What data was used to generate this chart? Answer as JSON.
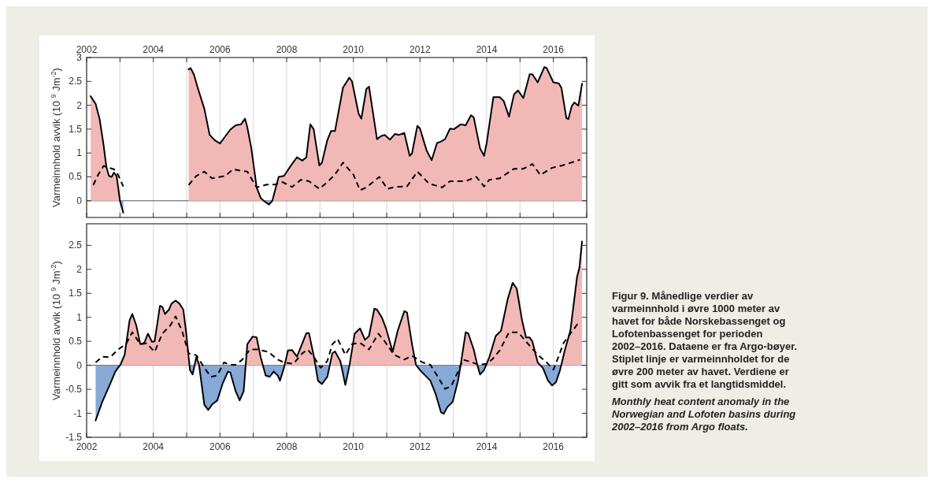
{
  "chart_data": [
    {
      "type": "area",
      "ylabel": "Varmeinnhold avvik (10 $^{9}$ Jm$^{-2}$)",
      "tick_labels": "y",
      "xlim": [
        2002,
        2017
      ],
      "xticks": [
        2002,
        {
          "value": 2003,
          "label": null
        },
        2004,
        {
          "value": 2005,
          "label": null
        },
        2006,
        {
          "value": 2007,
          "label": null
        },
        2008,
        {
          "value": 2009,
          "label": null
        },
        2010,
        {
          "value": 2011,
          "label": null
        },
        2012,
        {
          "value": 2013,
          "label": null
        },
        2014,
        {
          "value": 2015,
          "label": null
        },
        2016,
        {
          "value": 2017,
          "label": null
        }
      ],
      "x2lim": [
        2002,
        2017
      ],
      "x2ticks": [
        2002,
        {
          "value": 2003,
          "label": null
        },
        2004,
        {
          "value": 2005,
          "label": null
        },
        2006,
        {
          "value": 2007,
          "label": null
        },
        2008,
        {
          "value": 2009,
          "label": null
        },
        2010,
        {
          "value": 2011,
          "label": null
        },
        2012,
        {
          "value": 2013,
          "label": null
        },
        2014,
        {
          "value": 2015,
          "label": null
        },
        2016,
        {
          "value": 2017,
          "label": null
        }
      ],
      "ylim": [
        -0.35,
        3
      ],
      "yticks": [
        0,
        0.5,
        1,
        1.5,
        2,
        2.5,
        3
      ],
      "grid": "x",
      "series": [
        {
          "color": "#000000",
          "colors": [
            "#f2b8b6",
            "#f2b8b6",
            "#f2b8b6",
            "#f2b8b6",
            "#f2b8b6",
            "#f2b8b6",
            "#f2b8b6",
            "#f2b8b6",
            "#f2b8b6",
            "#f2b8b6",
            "#86a9d6",
            null,
            "#f2b8b6",
            "#f2b8b6",
            "#f2b8b6",
            "#f2b8b6",
            "#f2b8b6",
            "#f2b8b6",
            "#f2b8b6",
            "#f2b8b6",
            "#f2b8b6",
            "#f2b8b6",
            "#f2b8b6",
            "#f2b8b6",
            "#f2b8b6",
            "#f2b8b6",
            "#f2b8b6",
            "#f2b8b6",
            "#f2b8b6",
            "#86a9d6",
            "#86a9d6",
            "#f2b8b6",
            "#f2b8b6",
            "#f2b8b6",
            "#f2b8b6",
            "#f2b8b6",
            "#f2b8b6",
            "#f2b8b6",
            "#f2b8b6",
            "#f2b8b6",
            "#f2b8b6",
            "#f2b8b6",
            "#f2b8b6",
            "#f2b8b6",
            "#f2b8b6",
            "#f2b8b6",
            "#f2b8b6",
            "#f2b8b6",
            "#f2b8b6",
            "#f2b8b6",
            "#f2b8b6",
            "#f2b8b6",
            "#f2b8b6",
            "#f2b8b6",
            "#f2b8b6",
            "#f2b8b6",
            "#f2b8b6",
            "#f2b8b6",
            "#f2b8b6",
            "#f2b8b6",
            "#f2b8b6",
            "#f2b8b6",
            "#f2b8b6",
            "#f2b8b6",
            "#f2b8b6",
            "#f2b8b6",
            "#f2b8b6",
            "#f2b8b6",
            "#f2b8b6",
            "#f2b8b6",
            "#f2b8b6",
            "#f2b8b6",
            "#f2b8b6",
            "#f2b8b6",
            "#f2b8b6",
            "#f2b8b6",
            "#f2b8b6",
            "#f2b8b6",
            "#f2b8b6",
            "#f2b8b6",
            "#f2b8b6",
            "#f2b8b6",
            "#f2b8b6",
            "#f2b8b6",
            "#f2b8b6",
            "#f2b8b6",
            "#f2b8b6",
            "#f2b8b6",
            "#f2b8b6",
            "#f2b8b6",
            "#f2b8b6",
            "#f2b8b6",
            "#f2b8b6",
            "#f2b8b6",
            "#f2b8b6",
            "#f2b8b6",
            "#f2b8b6",
            "#f2b8b6"
          ],
          "x": [
            2002.12,
            2002.27,
            2002.39,
            2002.51,
            2002.59,
            2002.67,
            2002.75,
            2002.82,
            2002.9,
            2003.0,
            2003.1,
            2004.0,
            2005.06,
            2005.12,
            2005.22,
            2005.33,
            2005.53,
            2005.69,
            2005.84,
            2006.0,
            2006.16,
            2006.31,
            2006.47,
            2006.63,
            2006.75,
            2006.82,
            2006.94,
            2007.1,
            2007.22,
            2007.33,
            2007.47,
            2007.57,
            2007.76,
            2007.92,
            2008.16,
            2008.31,
            2008.47,
            2008.59,
            2008.71,
            2008.81,
            2008.98,
            2009.06,
            2009.22,
            2009.33,
            2009.45,
            2009.69,
            2009.88,
            2009.96,
            2010.16,
            2010.24,
            2010.39,
            2010.47,
            2010.71,
            2010.82,
            2010.94,
            2011.1,
            2011.25,
            2011.37,
            2011.53,
            2011.69,
            2011.76,
            2011.92,
            2012.0,
            2012.2,
            2012.35,
            2012.51,
            2012.63,
            2012.75,
            2012.9,
            2013.02,
            2013.22,
            2013.37,
            2013.53,
            2013.61,
            2013.8,
            2013.92,
            2014.0,
            2014.2,
            2014.39,
            2014.51,
            2014.67,
            2014.82,
            2014.94,
            2015.1,
            2015.29,
            2015.37,
            2015.53,
            2015.73,
            2015.8,
            2016.0,
            2016.16,
            2016.24,
            2016.39,
            2016.45,
            2016.55,
            2016.63,
            2016.75,
            2016.86
          ],
          "values": [
            2.19,
            2.03,
            1.71,
            1.16,
            0.72,
            0.52,
            0.5,
            0.59,
            0.52,
            0,
            -0.25,
            null,
            2.75,
            2.78,
            2.64,
            2.37,
            1.93,
            1.38,
            1.27,
            1.2,
            1.35,
            1.49,
            1.58,
            1.6,
            1.72,
            1.54,
            1.1,
            0.28,
            0.06,
            -0.01,
            -0.08,
            0,
            0.5,
            0.52,
            0.77,
            0.91,
            0.84,
            0.91,
            1.6,
            1.5,
            0.74,
            0.8,
            1.27,
            1.46,
            1.46,
            2.37,
            2.58,
            2.5,
            1.82,
            1.72,
            2.34,
            2.39,
            1.29,
            1.35,
            1.38,
            1.28,
            1.4,
            1.38,
            1.42,
            0.94,
            0.99,
            1.57,
            1.51,
            1.05,
            0.85,
            1.21,
            1.24,
            1.29,
            1.51,
            1.5,
            1.6,
            1.58,
            1.79,
            1.75,
            1.1,
            0.94,
            1.21,
            2.17,
            2.17,
            2.09,
            1.76,
            2.23,
            2.31,
            2.15,
            2.65,
            2.65,
            2.48,
            2.8,
            2.78,
            2.48,
            2.46,
            2.37,
            1.73,
            1.71,
            1.98,
            2.06,
            1.99,
            2.45
          ]
        },
        {
          "type": "line",
          "color": "#000000",
          "line_style": "dashed",
          "x": [
            2002.2,
            2002.35,
            2002.51,
            2002.67,
            2002.82,
            2002.94,
            2003.1,
            2004.0,
            2005.06,
            2005.29,
            2005.53,
            2005.76,
            2006.0,
            2006.16,
            2006.39,
            2006.63,
            2006.82,
            2007.1,
            2007.41,
            2007.65,
            2007.88,
            2008.16,
            2008.43,
            2008.67,
            2008.98,
            2009.22,
            2009.45,
            2009.69,
            2010.0,
            2010.2,
            2010.39,
            2010.78,
            2011.02,
            2011.25,
            2011.61,
            2011.92,
            2012.27,
            2012.67,
            2012.9,
            2013.37,
            2013.69,
            2013.92,
            2014.08,
            2014.39,
            2014.82,
            2015.1,
            2015.37,
            2015.61,
            2015.96,
            2016.27,
            2016.71,
            2016.8
          ],
          "values": [
            0.33,
            0.55,
            0.73,
            0.69,
            0.66,
            0.55,
            0.3,
            null,
            0.33,
            0.52,
            0.61,
            0.47,
            0.5,
            0.52,
            0.66,
            0.63,
            0.61,
            0.28,
            0.34,
            0.34,
            0.39,
            0.29,
            0.44,
            0.41,
            0.25,
            0.39,
            0.55,
            0.8,
            0.55,
            0.22,
            0.28,
            0.5,
            0.25,
            0.29,
            0.3,
            0.61,
            0.36,
            0.28,
            0.41,
            0.41,
            0.5,
            0.3,
            0.44,
            0.47,
            0.67,
            0.67,
            0.77,
            0.54,
            0.69,
            0.74,
            0.84,
            0.86
          ]
        }
      ]
    },
    {
      "type": "area",
      "ylabel": "Varmeinnhold avvik (10 $^{9}$ Jm$^{-2}$)",
      "xlim": [
        2002,
        2017
      ],
      "xticks": [
        2002,
        {
          "value": 2003,
          "label": null
        },
        2004,
        {
          "value": 2005,
          "label": null
        },
        2006,
        {
          "value": 2007,
          "label": null
        },
        2008,
        {
          "value": 2009,
          "label": null
        },
        2010,
        {
          "value": 2011,
          "label": null
        },
        2012,
        {
          "value": 2013,
          "label": null
        },
        2014,
        {
          "value": 2015,
          "label": null
        },
        2016,
        {
          "value": 2017,
          "label": null
        }
      ],
      "ylim": [
        -1.5,
        2.95
      ],
      "yticks": [
        -1.5,
        -1,
        -0.5,
        0,
        0.5,
        1,
        1.5,
        2,
        2.5
      ],
      "grid": "x",
      "annotations": [
        "Figur 9. Månedlige verdier av varmeinnhold i øvre 1000 meter av havet for både Norskebassenget og Lofotenbassenget for perioden 2002–2016. Dataene er fra Argo-bøyer. Stiplet linje er varmeinnholdet for de øvre 200 meter av havet. Verdiene er gitt som avvik fra et langtidsmiddel.",
        "Monthly heat content anomaly in the Norwegian and Lofoten basins during 2002–2016 from Argo floats."
      ],
      "series": [
        {
          "color": "#000000",
          "colors": [
            "#86a9d6",
            "#86a9d6",
            "#86a9d6",
            "#86a9d6",
            "#f2b8b6",
            "#f2b8b6",
            "#f2b8b6",
            "#f2b8b6",
            "#f2b8b6",
            "#f2b8b6",
            "#f2b8b6",
            "#f2b8b6",
            "#f2b8b6",
            "#f2b8b6",
            "#f2b8b6",
            "#f2b8b6",
            "#f2b8b6",
            "#f2b8b6",
            "#f2b8b6",
            "#f2b8b6",
            "#f2b8b6",
            "#f2b8b6",
            "#f2b8b6",
            "#86a9d6",
            "#86a9d6",
            "#f2b8b6",
            "#f2b8b6",
            "#86a9d6",
            "#86a9d6",
            "#86a9d6",
            "#86a9d6",
            "#86a9d6",
            "#86a9d6",
            "#86a9d6",
            "#86a9d6",
            "#86a9d6",
            "#86a9d6",
            "#f2b8b6",
            "#f2b8b6",
            "#f2b8b6",
            "#f2b8b6",
            "#86a9d6",
            "#86a9d6",
            "#86a9d6",
            "#86a9d6",
            "#86a9d6",
            "#86a9d6",
            "#f2b8b6",
            "#f2b8b6",
            "#f2b8b6",
            "#f2b8b6",
            "#f2b8b6",
            "#f2b8b6",
            "#f2b8b6",
            "#86a9d6",
            "#86a9d6",
            "#86a9d6",
            "#f2b8b6",
            "#f2b8b6",
            "#f2b8b6",
            "#86a9d6",
            "#86a9d6",
            "#f2b8b6",
            "#f2b8b6",
            "#f2b8b6",
            "#f2b8b6",
            "#f2b8b6",
            "#f2b8b6",
            "#f2b8b6",
            "#f2b8b6",
            "#f2b8b6",
            "#f2b8b6",
            "#f2b8b6",
            "#f2b8b6",
            "#f2b8b6",
            "#f2b8b6",
            "#86a9d6",
            "#86a9d6",
            "#86a9d6",
            "#86a9d6",
            "#86a9d6",
            "#86a9d6",
            "#86a9d6",
            "#86a9d6",
            "#86a9d6",
            "#f2b8b6",
            "#f2b8b6",
            "#f2b8b6",
            "#f2b8b6",
            "#86a9d6",
            "#86a9d6",
            "#86a9d6",
            "#f2b8b6",
            "#f2b8b6",
            "#f2b8b6",
            "#f2b8b6",
            "#f2b8b6",
            "#f2b8b6",
            "#f2b8b6",
            "#f2b8b6",
            "#f2b8b6",
            "#f2b8b6",
            "#f2b8b6",
            "#86a9d6",
            "#86a9d6",
            "#86a9d6",
            "#86a9d6",
            "#86a9d6",
            "#f2b8b6",
            "#f2b8b6",
            "#f2b8b6",
            "#f2b8b6",
            "#f2b8b6"
          ],
          "x": [
            2002.27,
            2002.47,
            2002.71,
            2002.86,
            2003.02,
            2003.14,
            2003.29,
            2003.37,
            2003.49,
            2003.61,
            2003.73,
            2003.84,
            2003.96,
            2004.04,
            2004.2,
            2004.27,
            2004.35,
            2004.47,
            2004.55,
            2004.67,
            2004.78,
            2004.9,
            2004.98,
            2005.1,
            2005.18,
            2005.29,
            2005.37,
            2005.53,
            2005.65,
            2005.76,
            2005.92,
            2006.08,
            2006.24,
            2006.31,
            2006.47,
            2006.59,
            2006.71,
            2006.82,
            2006.98,
            2007.1,
            2007.22,
            2007.37,
            2007.49,
            2007.61,
            2007.73,
            2007.8,
            2007.92,
            2008.04,
            2008.16,
            2008.31,
            2008.43,
            2008.59,
            2008.67,
            2008.82,
            2008.94,
            2009.06,
            2009.22,
            2009.37,
            2009.45,
            2009.61,
            2009.76,
            2009.88,
            2010.04,
            2010.2,
            2010.35,
            2010.47,
            2010.63,
            2010.71,
            2010.86,
            2010.98,
            2011.18,
            2011.33,
            2011.53,
            2011.61,
            2011.76,
            2011.88,
            2012.0,
            2012.24,
            2012.31,
            2012.47,
            2012.63,
            2012.71,
            2012.82,
            2012.98,
            2013.14,
            2013.22,
            2013.37,
            2013.45,
            2013.61,
            2013.73,
            2013.8,
            2013.92,
            2014.08,
            2014.27,
            2014.43,
            2014.63,
            2014.78,
            2014.9,
            2015.06,
            2015.18,
            2015.29,
            2015.37,
            2015.53,
            2015.69,
            2015.84,
            2015.96,
            2016.08,
            2016.2,
            2016.35,
            2016.51,
            2016.71,
            2016.78,
            2016.86
          ],
          "values": [
            -1.15,
            -0.76,
            -0.38,
            -0.13,
            0.02,
            0.22,
            0.94,
            1.07,
            0.83,
            0.44,
            0.47,
            0.66,
            0.49,
            0.5,
            1.24,
            1.22,
            1.07,
            1.16,
            1.29,
            1.35,
            1.29,
            1.16,
            0.72,
            -0.1,
            -0.19,
            0.17,
            0.02,
            -0.82,
            -0.93,
            -0.82,
            -0.73,
            -0.38,
            -0.13,
            -0.15,
            -0.54,
            -0.73,
            -0.54,
            0.44,
            0.6,
            0.58,
            0.17,
            -0.21,
            -0.24,
            -0.13,
            -0.21,
            -0.32,
            -0.05,
            0.31,
            0.32,
            0.18,
            0.39,
            0.67,
            0.67,
            0.17,
            -0.32,
            -0.39,
            -0.24,
            0.25,
            0.29,
            0.09,
            -0.41,
            -0.02,
            0.66,
            0.77,
            0.53,
            0.61,
            1.18,
            1.16,
            0.99,
            0.77,
            0.28,
            0.72,
            1.13,
            1.1,
            0.44,
            0.01,
            -0.1,
            -0.27,
            -0.32,
            -0.6,
            -0.98,
            -1.01,
            -0.87,
            -0.76,
            -0.32,
            0.01,
            0.69,
            0.66,
            0.33,
            -0.02,
            -0.19,
            -0.1,
            0.17,
            0.61,
            0.72,
            1.38,
            1.72,
            1.6,
            0.94,
            0.58,
            0.58,
            0.5,
            0.06,
            -0.06,
            -0.32,
            -0.42,
            -0.35,
            -0.1,
            0.33,
            0.72,
            1.84,
            2.03,
            2.58
          ]
        },
        {
          "type": "line",
          "color": "#000000",
          "line_style": "dashed",
          "x": [
            2002.27,
            2002.47,
            2002.71,
            2002.94,
            2003.18,
            2003.37,
            2003.61,
            2003.8,
            2004.04,
            2004.27,
            2004.51,
            2004.67,
            2004.86,
            2005.06,
            2005.29,
            2005.53,
            2005.73,
            2005.92,
            2006.12,
            2006.31,
            2006.47,
            2006.67,
            2006.9,
            2007.14,
            2007.45,
            2007.73,
            2007.92,
            2008.2,
            2008.47,
            2008.63,
            2008.82,
            2009.02,
            2009.22,
            2009.37,
            2009.53,
            2009.76,
            2009.96,
            2010.2,
            2010.47,
            2010.75,
            2010.94,
            2011.22,
            2011.53,
            2011.76,
            2012.08,
            2012.31,
            2012.51,
            2012.75,
            2012.94,
            2013.14,
            2013.29,
            2013.57,
            2013.76,
            2014.0,
            2014.16,
            2014.39,
            2014.67,
            2014.94,
            2015.25,
            2015.53,
            2015.8,
            2016.0,
            2016.12,
            2016.31,
            2016.51,
            2016.78
          ],
          "values": [
            0.06,
            0.18,
            0.17,
            0.33,
            0.44,
            0.69,
            0.44,
            0.46,
            0.28,
            0.66,
            0.83,
            1.02,
            0.72,
            0.25,
            0.21,
            -0.05,
            -0.24,
            -0.21,
            0.06,
            0.01,
            0.01,
            0.12,
            0.33,
            0.33,
            0.28,
            0.12,
            0.06,
            0.03,
            0.25,
            0.33,
            0.17,
            -0.05,
            0.09,
            0.44,
            0.55,
            0.22,
            0.44,
            0.47,
            0.33,
            0.66,
            0.5,
            0.22,
            0.12,
            0.2,
            0.06,
            0.01,
            -0.21,
            -0.49,
            -0.43,
            -0.13,
            0.12,
            0.06,
            0.01,
            0.03,
            0.12,
            0.31,
            0.69,
            0.69,
            0.44,
            0.22,
            0.06,
            -0.09,
            0.12,
            0.47,
            0.66,
            0.91
          ]
        }
      ]
    }
  ]
}
